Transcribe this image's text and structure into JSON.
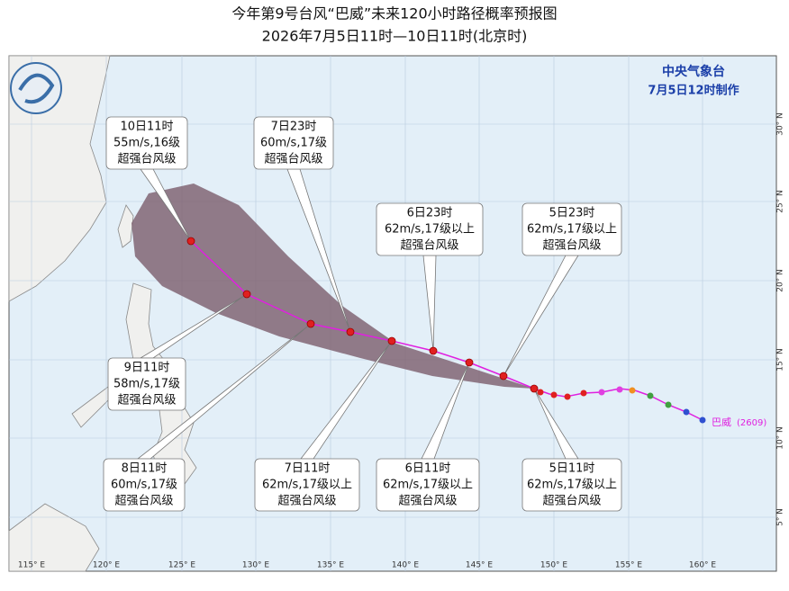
{
  "header": {
    "title": "今年第9号台风“巴威”未来120小时路径概率预报图",
    "subtitle": "2026年7月5日11时—10日11时(北京时)"
  },
  "agency": {
    "name": "中央气象台",
    "issued": "7月5日12时制作"
  },
  "storm": {
    "name": "巴威",
    "code": "(2609)"
  },
  "forecasts": [
    {
      "time": "5日11时",
      "wind": "62m/s,17级以上",
      "category": "超强台风级"
    },
    {
      "time": "5日23时",
      "wind": "62m/s,17级以上",
      "category": "超强台风级"
    },
    {
      "time": "6日11时",
      "wind": "62m/s,17级以上",
      "category": "超强台风级"
    },
    {
      "time": "6日23时",
      "wind": "62m/s,17级以上",
      "category": "超强台风级"
    },
    {
      "time": "7日11时",
      "wind": "62m/s,17级以上",
      "category": "超强台风级"
    },
    {
      "time": "7日23时",
      "wind": "60m/s,17级",
      "category": "超强台风级"
    },
    {
      "time": "8日11时",
      "wind": "60m/s,17级",
      "category": "超强台风级"
    },
    {
      "time": "9日11时",
      "wind": "58m/s,17级",
      "category": "超强台风级"
    },
    {
      "time": "10日11时",
      "wind": "55m/s,16级",
      "category": "超强台风级"
    }
  ],
  "lon_labels": [
    "115° E",
    "120° E",
    "125° E",
    "130° E",
    "135° E",
    "140° E",
    "145° E",
    "150° E",
    "155° E",
    "160° E"
  ],
  "lat_labels": [
    "30° N",
    "25° N",
    "20° N",
    "15° N",
    "10° N",
    "5° N"
  ]
}
